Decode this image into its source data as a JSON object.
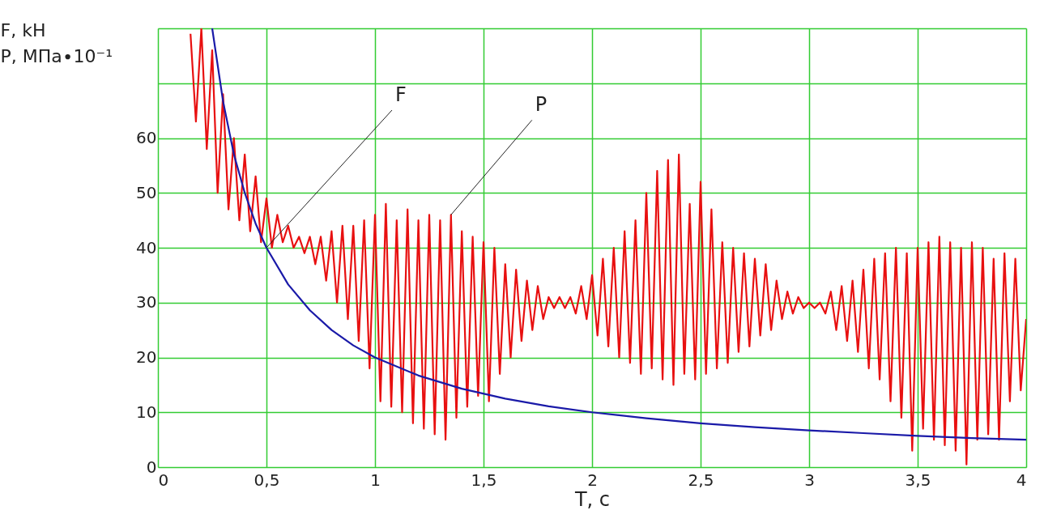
{
  "chart_data": {
    "type": "line",
    "xlabel": "T, c",
    "ylabel": "F, kH\nP, МПа∙10⁻¹",
    "xlim": [
      0,
      4
    ],
    "ylim": [
      0,
      80
    ],
    "xticks": [
      0,
      {
        "value": 0.5,
        "label": "0,5"
      },
      1,
      {
        "value": 1.5,
        "label": "1,5"
      },
      2,
      {
        "value": 2.5,
        "label": "2,5"
      },
      3,
      {
        "value": 3.5,
        "label": "3,5"
      },
      4
    ],
    "yticks": [
      0,
      10,
      20,
      30,
      40,
      50,
      60,
      {
        "value": 70,
        "label": null
      },
      {
        "value": 80,
        "label": null
      }
    ],
    "grid": true,
    "marker": "none",
    "line_style": "solid",
    "annotations": [
      {
        "text": "F",
        "x": 0.5,
        "y": 40
      },
      {
        "text": "P",
        "x": 1.35,
        "y": 46
      }
    ],
    "series": [
      {
        "color": "#e81010",
        "x": [
          0.15,
          0.175,
          0.2,
          0.225,
          0.25,
          0.275,
          0.3,
          0.325,
          0.35,
          0.375,
          0.4,
          0.425,
          0.45,
          0.475,
          0.5,
          0.525,
          0.55,
          0.575,
          0.6,
          0.625,
          0.65,
          0.675,
          0.7,
          0.725,
          0.75,
          0.775,
          0.8,
          0.825,
          0.85,
          0.875,
          0.9,
          0.925,
          0.95,
          0.975,
          1.0,
          1.025,
          1.05,
          1.075,
          1.1,
          1.125,
          1.15,
          1.175,
          1.2,
          1.225,
          1.25,
          1.275,
          1.3,
          1.325,
          1.35,
          1.375,
          1.4,
          1.425,
          1.45,
          1.475,
          1.5,
          1.525,
          1.55,
          1.575,
          1.6,
          1.625,
          1.65,
          1.675,
          1.7,
          1.725,
          1.75,
          1.775,
          1.8,
          1.825,
          1.85,
          1.875,
          1.9,
          1.925,
          1.95,
          1.975,
          2.0,
          2.025,
          2.05,
          2.075,
          2.1,
          2.125,
          2.15,
          2.175,
          2.2,
          2.225,
          2.25,
          2.275,
          2.3,
          2.325,
          2.35,
          2.375,
          2.4,
          2.425,
          2.45,
          2.475,
          2.5,
          2.525,
          2.55,
          2.575,
          2.6,
          2.625,
          2.65,
          2.675,
          2.7,
          2.725,
          2.75,
          2.775,
          2.8,
          2.825,
          2.85,
          2.875,
          2.9,
          2.925,
          2.95,
          2.975,
          3.0,
          3.025,
          3.05,
          3.075,
          3.1,
          3.125,
          3.15,
          3.175,
          3.2,
          3.225,
          3.25,
          3.275,
          3.3,
          3.325,
          3.35,
          3.375,
          3.4,
          3.425,
          3.45,
          3.475,
          3.5,
          3.525,
          3.55,
          3.575,
          3.6,
          3.625,
          3.65,
          3.675,
          3.7,
          3.725,
          3.75,
          3.775,
          3.8,
          3.825,
          3.85,
          3.875,
          3.9,
          3.925,
          3.95,
          3.975,
          4.0
        ],
        "values": [
          79,
          63,
          80,
          58,
          76,
          50,
          68,
          47,
          60,
          45,
          57,
          43,
          53,
          41,
          49,
          40,
          46,
          41,
          44,
          40,
          42,
          39,
          42,
          37,
          42,
          34,
          43,
          30,
          44,
          27,
          44,
          23,
          45,
          18,
          46,
          12,
          48,
          11,
          45,
          10,
          47,
          8,
          45,
          7,
          46,
          6,
          45,
          5,
          46,
          9,
          43,
          11,
          42,
          13,
          41,
          12,
          40,
          17,
          37,
          20,
          36,
          23,
          34,
          25,
          33,
          27,
          31,
          29,
          31,
          29,
          31,
          28,
          33,
          27,
          35,
          24,
          38,
          22,
          40,
          20,
          43,
          19,
          45,
          17,
          50,
          18,
          54,
          16,
          56,
          15,
          57,
          17,
          48,
          16,
          52,
          17,
          47,
          18,
          41,
          19,
          40,
          21,
          39,
          22,
          38,
          24,
          37,
          25,
          34,
          27,
          32,
          28,
          31,
          29,
          30,
          29,
          30,
          28,
          32,
          25,
          33,
          23,
          34,
          21,
          36,
          18,
          38,
          16,
          39,
          12,
          40,
          9,
          39,
          3,
          40,
          7,
          41,
          5,
          42,
          4,
          41,
          3,
          40,
          0.5,
          41,
          5,
          40,
          6,
          38,
          5,
          39,
          12,
          38,
          14,
          27
        ]
      },
      {
        "color": "#1a1aa8",
        "x": [
          0.25,
          0.3,
          0.35,
          0.4,
          0.45,
          0.5,
          0.6,
          0.7,
          0.8,
          0.9,
          1.0,
          1.2,
          1.4,
          1.6,
          1.8,
          2.0,
          2.25,
          2.5,
          2.75,
          3.0,
          3.25,
          3.5,
          3.75,
          4.0
        ],
        "values": [
          80,
          66.7,
          57,
          50,
          44.4,
          40,
          33.3,
          28.6,
          25,
          22.2,
          20,
          16.7,
          14.3,
          12.5,
          11.1,
          10,
          8.9,
          8,
          7.3,
          6.7,
          6.2,
          5.7,
          5.3,
          5
        ]
      }
    ]
  }
}
